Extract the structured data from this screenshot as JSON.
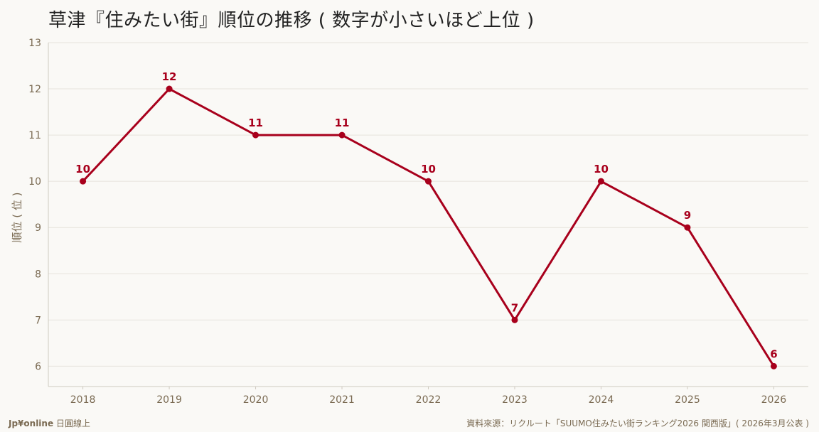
{
  "title": "草津『住みたい街』順位の推移 ( 数字が小さいほど上位 )",
  "footer": {
    "brand": "Jp¥online",
    "brand_sub": "日圓線上",
    "source": "資料來源：リクルート「SUUMO住みたい街ランキング2026 関西版」( 2026年3月公表 )"
  },
  "colors": {
    "series": "#a8001c",
    "axis_text": "#7a6a52",
    "grid": "#e6e3dc",
    "axis_line": "#cfcac0"
  },
  "chart_data": {
    "type": "line",
    "title": "草津『住みたい街』順位の推移 ( 数字が小さいほど上位 )",
    "xlabel": "",
    "ylabel": "順位 ( 位 )",
    "x": [
      2018,
      2019,
      2020,
      2021,
      2022,
      2023,
      2024,
      2025,
      2026
    ],
    "series": [
      {
        "name": "",
        "values": [
          10,
          12,
          11,
          11,
          10,
          7,
          10,
          9,
          6
        ]
      }
    ],
    "ylim": [
      5.56,
      13
    ],
    "yticks": [
      6,
      7,
      8,
      9,
      10,
      11,
      12,
      13
    ],
    "xlim": [
      2017.6,
      2026.4
    ],
    "grid": true,
    "data_labels": true
  }
}
